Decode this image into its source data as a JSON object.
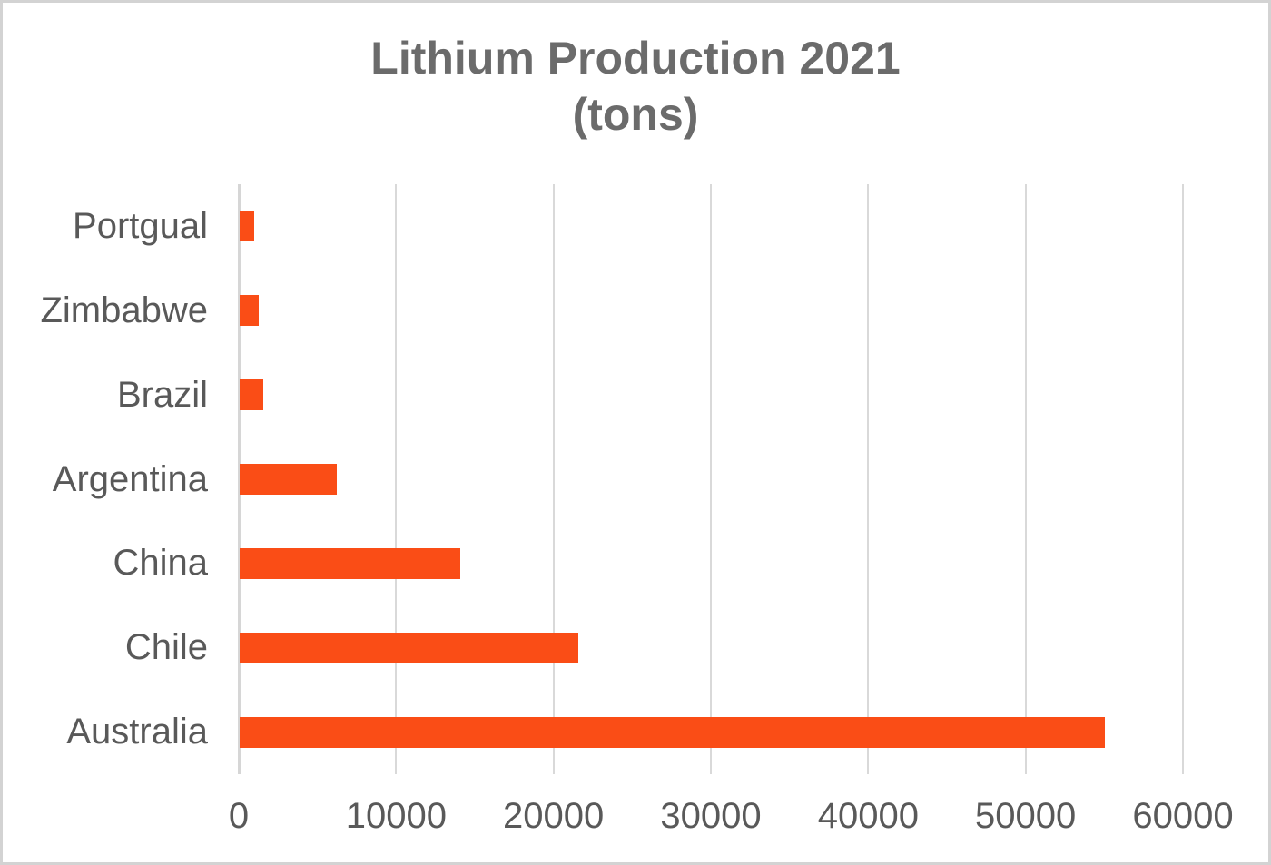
{
  "chart_data": {
    "type": "bar",
    "orientation": "horizontal",
    "title": "Lithium Production 2021",
    "subtitle": "(tons)",
    "categories": [
      "Portgual",
      "Zimbabwe",
      "Brazil",
      "Argentina",
      "China",
      "Chile",
      "Australia"
    ],
    "values": [
      900,
      1200,
      1500,
      6200,
      14000,
      21500,
      55000
    ],
    "xlabel": "",
    "ylabel": "",
    "xlim": [
      0,
      60000
    ],
    "x_ticks": [
      0,
      10000,
      20000,
      30000,
      40000,
      50000,
      60000
    ],
    "x_tick_labels": [
      "0",
      "10000",
      "20000",
      "30000",
      "40000",
      "50000",
      "60000"
    ],
    "grid": true,
    "legend": false,
    "colors": {
      "bar": "#FA4D16",
      "gridline": "#D9D9D9",
      "axis_line": "#D6D6D6",
      "label_text": "#595959",
      "title_text": "#6B6B6B",
      "background": "#FFFFFF",
      "frame_border": "#D3D3D3"
    }
  }
}
